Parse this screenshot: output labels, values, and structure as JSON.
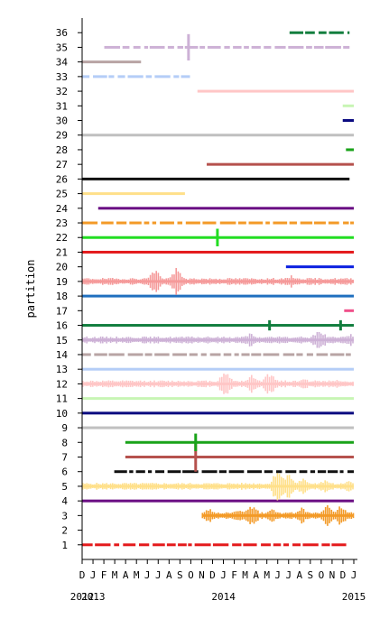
{
  "chart_data": {
    "type": "timeline",
    "ylabel": "partition",
    "xlabel": "",
    "y_ticks": [
      1,
      2,
      3,
      4,
      5,
      6,
      7,
      8,
      9,
      10,
      11,
      12,
      13,
      14,
      15,
      16,
      17,
      18,
      19,
      20,
      21,
      22,
      23,
      24,
      25,
      26,
      27,
      28,
      29,
      30,
      31,
      32,
      33,
      34,
      35,
      36
    ],
    "ylim": [
      0,
      37
    ],
    "xlim": [
      "2012-12-01",
      "2015-01-01"
    ],
    "month_ticks": [
      "D",
      "J",
      "F",
      "M",
      "A",
      "M",
      "J",
      "J",
      "A",
      "S",
      "O",
      "N",
      "D",
      "J",
      "F",
      "M",
      "A",
      "M",
      "J",
      "J",
      "A",
      "S",
      "O",
      "N",
      "D",
      "J"
    ],
    "year_labels": [
      {
        "label": "2013",
        "date": "2013-01-01"
      },
      {
        "label": "2014",
        "date": "2014-01-01"
      },
      {
        "label": "2015",
        "date": "2015-01-01"
      },
      {
        "label": "2012",
        "date": "2012-12-01"
      }
    ],
    "series": [
      {
        "partition": 1,
        "color": "#e41a1c",
        "style": "dashed",
        "start": "2012-12-01",
        "end": "2014-12-20",
        "bursts": []
      },
      {
        "partition": 3,
        "color": "#f39a27",
        "style": "wavy",
        "start": "2013-11-01",
        "end": "2015-01-01",
        "bursts": [
          {
            "date": "2013-11-20",
            "amp": 0.5
          },
          {
            "date": "2014-02-10",
            "amp": 0.55
          },
          {
            "date": "2014-03-20",
            "amp": 0.8
          },
          {
            "date": "2014-05-15",
            "amp": 0.55
          },
          {
            "date": "2014-08-05",
            "amp": 0.6
          },
          {
            "date": "2014-10-20",
            "amp": 0.8
          },
          {
            "date": "2014-11-25",
            "amp": 0.9
          }
        ]
      },
      {
        "partition": 4,
        "color": "#6a0d83",
        "style": "solid",
        "start": "2012-12-01",
        "end": "2015-01-01",
        "bursts": []
      },
      {
        "partition": 5,
        "color": "#ffe08a",
        "style": "wavy",
        "start": "2012-12-01",
        "end": "2015-01-01",
        "bursts": [
          {
            "date": "2014-06-01",
            "amp": 1.3
          },
          {
            "date": "2014-07-01",
            "amp": 1.0
          },
          {
            "date": "2014-08-10",
            "amp": 0.6
          },
          {
            "date": "2014-10-10",
            "amp": 0.5
          },
          {
            "date": "2014-12-15",
            "amp": 0.4
          }
        ]
      },
      {
        "partition": 6,
        "color": "#111111",
        "style": "dashed",
        "start": "2013-03-01",
        "end": "2015-01-01",
        "bursts": []
      },
      {
        "partition": 7,
        "color": "#b5514d",
        "style": "solid",
        "start": "2013-04-01",
        "end": "2015-01-01",
        "bursts": [
          {
            "date": "2013-10-15",
            "amp": 1.0
          }
        ]
      },
      {
        "partition": 8,
        "color": "#1aa31a",
        "style": "solid",
        "start": "2013-04-01",
        "end": "2015-01-01",
        "bursts": [
          {
            "date": "2013-10-15",
            "amp": 0.6
          }
        ]
      },
      {
        "partition": 9,
        "color": "#c0c0c0",
        "style": "solid",
        "start": "2012-12-01",
        "end": "2015-01-01",
        "bursts": []
      },
      {
        "partition": 10,
        "color": "#0a0a80",
        "style": "solid",
        "start": "2012-12-01",
        "end": "2015-01-01",
        "bursts": []
      },
      {
        "partition": 11,
        "color": "#c8f5b4",
        "style": "solid",
        "start": "2012-12-01",
        "end": "2015-01-01",
        "bursts": []
      },
      {
        "partition": 12,
        "color": "#ffc6c6",
        "style": "wavy",
        "start": "2012-12-01",
        "end": "2015-01-01",
        "bursts": [
          {
            "date": "2014-01-05",
            "amp": 1.0
          },
          {
            "date": "2014-03-20",
            "amp": 0.7
          },
          {
            "date": "2014-05-10",
            "amp": 0.9
          },
          {
            "date": "2014-08-15",
            "amp": 0.4
          },
          {
            "date": "2014-11-10",
            "amp": 0.35
          }
        ]
      },
      {
        "partition": 13,
        "color": "#b4cdf7",
        "style": "solid",
        "start": "2012-12-01",
        "end": "2015-01-01",
        "bursts": []
      },
      {
        "partition": 14,
        "color": "#b8a4a4",
        "style": "dashed",
        "start": "2012-12-01",
        "end": "2015-01-01",
        "bursts": []
      },
      {
        "partition": 15,
        "color": "#cdb1d6",
        "style": "wavy",
        "start": "2012-12-01",
        "end": "2015-01-01",
        "bursts": [
          {
            "date": "2014-03-15",
            "amp": 0.5
          },
          {
            "date": "2014-09-25",
            "amp": 0.9
          },
          {
            "date": "2014-12-20",
            "amp": 0.5
          }
        ]
      },
      {
        "partition": 16,
        "color": "#127e3e",
        "style": "solid",
        "start": "2012-12-01",
        "end": "2015-01-01",
        "bursts": [
          {
            "date": "2014-05-10",
            "amp": 0.35
          },
          {
            "date": "2014-11-25",
            "amp": 0.35
          }
        ]
      },
      {
        "partition": 17,
        "color": "#f0508a",
        "style": "dashed",
        "start": "2014-12-05",
        "end": "2015-01-01",
        "bursts": []
      },
      {
        "partition": 18,
        "color": "#1f6fbf",
        "style": "solid",
        "start": "2012-12-01",
        "end": "2015-01-01",
        "bursts": []
      },
      {
        "partition": 19,
        "color": "#f59a9a",
        "style": "wavy",
        "start": "2012-12-01",
        "end": "2015-01-01",
        "bursts": [
          {
            "date": "2013-06-20",
            "amp": 0.9
          },
          {
            "date": "2013-08-20",
            "amp": 1.0
          },
          {
            "date": "2014-07-10",
            "amp": 0.45
          }
        ]
      },
      {
        "partition": 20,
        "color": "#0a1fe0",
        "style": "solid",
        "start": "2014-06-25",
        "end": "2015-01-01",
        "bursts": []
      },
      {
        "partition": 21,
        "color": "#e41a1c",
        "style": "solid",
        "start": "2012-12-01",
        "end": "2015-01-01",
        "bursts": []
      },
      {
        "partition": 22,
        "color": "#22dd22",
        "style": "solid",
        "start": "2012-12-01",
        "end": "2015-01-01",
        "bursts": [
          {
            "date": "2013-12-15",
            "amp": 0.6
          }
        ]
      },
      {
        "partition": 23,
        "color": "#f39a27",
        "style": "dashed",
        "start": "2012-12-01",
        "end": "2015-01-01",
        "bursts": []
      },
      {
        "partition": 24,
        "color": "#6a0d83",
        "style": "solid",
        "start": "2013-01-15",
        "end": "2015-01-01",
        "bursts": []
      },
      {
        "partition": 25,
        "color": "#ffe08a",
        "style": "solid",
        "start": "2012-12-01",
        "end": "2013-09-15",
        "bursts": []
      },
      {
        "partition": 26,
        "color": "#111111",
        "style": "solid",
        "start": "2012-12-01",
        "end": "2014-12-20",
        "bursts": []
      },
      {
        "partition": 27,
        "color": "#b5514d",
        "style": "solid",
        "start": "2013-11-15",
        "end": "2015-01-01",
        "bursts": []
      },
      {
        "partition": 28,
        "color": "#1aa31a",
        "style": "solid",
        "start": "2014-12-10",
        "end": "2015-01-01",
        "bursts": []
      },
      {
        "partition": 29,
        "color": "#c0c0c0",
        "style": "solid",
        "start": "2012-12-01",
        "end": "2015-01-01",
        "bursts": []
      },
      {
        "partition": 30,
        "color": "#0a0a80",
        "style": "solid",
        "start": "2014-12-01",
        "end": "2015-01-01",
        "bursts": []
      },
      {
        "partition": 31,
        "color": "#c8f5b4",
        "style": "dashed",
        "start": "2014-12-01",
        "end": "2015-01-01",
        "bursts": []
      },
      {
        "partition": 32,
        "color": "#ffc6c6",
        "style": "solid",
        "start": "2013-10-20",
        "end": "2015-01-01",
        "bursts": []
      },
      {
        "partition": 33,
        "color": "#b4cdf7",
        "style": "dashed",
        "start": "2012-12-01",
        "end": "2013-10-01",
        "bursts": []
      },
      {
        "partition": 34,
        "color": "#b8a4a4",
        "style": "solid",
        "start": "2012-12-01",
        "end": "2013-05-15",
        "bursts": []
      },
      {
        "partition": 35,
        "color": "#cdb1d6",
        "style": "dashed",
        "start": "2013-02-01",
        "end": "2014-12-20",
        "bursts": [
          {
            "date": "2013-09-25",
            "amp": 0.9
          }
        ]
      },
      {
        "partition": 36,
        "color": "#127e3e",
        "style": "dashed",
        "start": "2014-07-05",
        "end": "2014-12-20",
        "bursts": []
      }
    ]
  }
}
